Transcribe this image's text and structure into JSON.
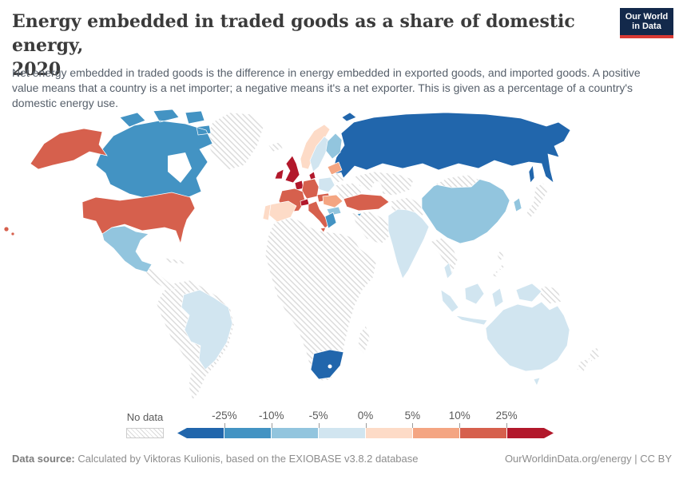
{
  "header": {
    "title_line1": "Energy embedded in traded goods as a share of domestic energy,",
    "title_line2": "2020",
    "subtitle": "Net energy embedded in traded goods is the difference in energy embedded in exported goods, and imported goods. A positive value means that a country is a net importer; a negative means it's a net exporter. This is given as a percentage of a country's domestic energy use.",
    "logo": {
      "line1": "Our World",
      "line2": "in Data",
      "bg_color": "#13294b",
      "accent_color": "#d93a34"
    }
  },
  "legend": {
    "no_data_label": "No data",
    "ticks": [
      "-25%",
      "-10%",
      "-5%",
      "0%",
      "5%",
      "10%",
      "25%"
    ]
  },
  "chart_data": {
    "type": "heatmap",
    "subtype": "choropleth-world-map",
    "title": "Energy embedded in traded goods as a share of domestic energy, 2020",
    "unit": "% of domestic energy use",
    "legend_position": "bottom",
    "legend_bins": [
      {
        "label": "less than -25%",
        "color": "#2166ac"
      },
      {
        "label": "-25% to -10%",
        "color": "#4393c3"
      },
      {
        "label": "-10% to -5%",
        "color": "#92c5de"
      },
      {
        "label": "-5% to 0%",
        "color": "#d1e5f0"
      },
      {
        "label": "0% to 5%",
        "color": "#fddbc7"
      },
      {
        "label": "5% to 10%",
        "color": "#f4a582"
      },
      {
        "label": "10% to 25%",
        "color": "#d6604d"
      },
      {
        "label": "more than 25%",
        "color": "#b2182b"
      }
    ],
    "countries": {
      "United States": "10% to 25%",
      "Canada": "-25% to -10%",
      "Greenland": "No data",
      "Mexico": "-10% to -5%",
      "Central America": "No data",
      "Caribbean": "No data",
      "Brazil": "-5% to 0%",
      "Other South America": "No data",
      "Iceland": "No data",
      "United Kingdom": "more than 25%",
      "Ireland": "more than 25%",
      "Norway": "0% to 5%",
      "Sweden": "-5% to 0%",
      "Finland": "-10% to -5%",
      "Baltic states": "5% to 10%",
      "Denmark": "more than 25%",
      "Netherlands & Belgium": "more than 25%",
      "Germany": "10% to 25%",
      "Poland": "-5% to 0%",
      "France": "10% to 25%",
      "Switzerland": "more than 25%",
      "Austria & Czechia": "10% to 25%",
      "Spain": "0% to 5%",
      "Portugal": "0% to 5%",
      "Italy": "10% to 25%",
      "Hungary & Romania": "5% to 10%",
      "Bulgaria": "-10% to -5%",
      "Greece": "-25% to -10%",
      "Ukraine": "No data",
      "Belarus": "No data",
      "Turkey": "10% to 25%",
      "Cyprus": "-25% to -10%",
      "Russia": "less than -25%",
      "Kazakhstan & Central Asia": "No data",
      "Middle East": "No data",
      "Iran, Afghanistan & Pakistan": "No data",
      "Rest of Africa": "No data",
      "South Africa": "less than -25%",
      "Madagascar": "No data",
      "India": "-5% to 0%",
      "China": "-10% to -5%",
      "Mongolia": "No data",
      "Mainland Southeast Asia": "No data",
      "South Korea": "-10% to -5%",
      "Japan": "No data",
      "Philippines": "No data",
      "Indonesia": "-5% to 0%",
      "Papua New Guinea": "No data",
      "Australia": "-5% to 0%",
      "New Zealand": "No data"
    }
  },
  "footer": {
    "source_label": "Data source:",
    "source_text": " Calculated by Viktoras Kulionis, based on the EXIOBASE v3.8.2 database",
    "link_text": "OurWorldinData.org/energy | CC BY"
  }
}
